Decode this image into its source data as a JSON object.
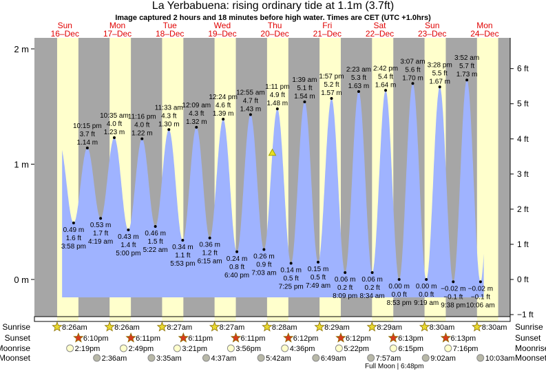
{
  "header": {
    "title": "La Yerbabuena: rising  ordinary tide at 1.1m (3.7ft)",
    "subtitle": "Image captured 2 hours and 18 minutes before high water. Times are CET (UTC +1.0hrs)"
  },
  "colors": {
    "night": "#a6a6a6",
    "day": "#ffffcc",
    "water": "#9fb3ff",
    "day_label": "#e00000",
    "sunrise": "#e8d830",
    "sunset": "#d63a1e",
    "moonrise": "#ffffcc",
    "moonset": "#b8b8a8"
  },
  "days": [
    {
      "name": "Sun",
      "date": "16–Dec"
    },
    {
      "name": "Mon",
      "date": "17–Dec"
    },
    {
      "name": "Tue",
      "date": "18–Dec"
    },
    {
      "name": "Wed",
      "date": "19–Dec"
    },
    {
      "name": "Thu",
      "date": "20–Dec"
    },
    {
      "name": "Fri",
      "date": "21–Dec"
    },
    {
      "name": "Sat",
      "date": "22–Dec"
    },
    {
      "name": "Sun",
      "date": "23–Dec"
    },
    {
      "name": "Mon",
      "date": "24–Dec"
    }
  ],
  "chart_data": {
    "type": "area",
    "title": "La Yerbabuena: rising  ordinary tide at 1.1m (3.7ft)",
    "left_axis": {
      "unit": "m",
      "ticks": [
        {
          "v": 2,
          "label": "2 m"
        },
        {
          "v": 1,
          "label": "1 m"
        },
        {
          "v": 0,
          "label": "0 m"
        }
      ]
    },
    "right_axis": {
      "unit": "ft",
      "ticks": [
        {
          "v": 6,
          "label": "6 ft"
        },
        {
          "v": 5,
          "label": "5 ft"
        },
        {
          "v": 4,
          "label": "4 ft"
        },
        {
          "v": 3,
          "label": "3 ft"
        },
        {
          "v": 2,
          "label": "2 ft"
        },
        {
          "v": 1,
          "label": "1 ft"
        },
        {
          "v": 0,
          "label": "0 ft"
        },
        {
          "v": -1,
          "label": "−1 ft"
        }
      ]
    },
    "ylim_m": [
      -0.3,
      2.1
    ],
    "current": {
      "day": 4,
      "hour": 10.88,
      "m": 1.1
    },
    "extremes": [
      {
        "d": 0,
        "h": 15.97,
        "type": "low",
        "m": 0.49,
        "m_label": "0.49 m",
        "ft": "1.6 ft",
        "time": "3:58 pm"
      },
      {
        "d": 0,
        "h": 22.25,
        "type": "high",
        "m": 1.14,
        "m_label": "1.14 m",
        "ft": "3.7 ft",
        "time": "10:15 pm"
      },
      {
        "d": 1,
        "h": 4.32,
        "type": "low",
        "m": 0.53,
        "m_label": "0.53 m",
        "ft": "1.7 ft",
        "time": "4:19 am"
      },
      {
        "d": 1,
        "h": 10.58,
        "type": "high",
        "m": 1.23,
        "m_label": "1.23 m",
        "ft": "4.0 ft",
        "time": "10:35 am"
      },
      {
        "d": 1,
        "h": 17.0,
        "type": "low",
        "m": 0.43,
        "m_label": "0.43 m",
        "ft": "1.4 ft",
        "time": "5:00 pm"
      },
      {
        "d": 1,
        "h": 23.27,
        "type": "high",
        "m": 1.22,
        "m_label": "1.22 m",
        "ft": "4.0 ft",
        "time": "11:16 pm"
      },
      {
        "d": 2,
        "h": 5.37,
        "type": "low",
        "m": 0.46,
        "m_label": "0.46 m",
        "ft": "1.5 ft",
        "time": "5:22 am"
      },
      {
        "d": 2,
        "h": 11.55,
        "type": "high",
        "m": 1.3,
        "m_label": "1.30 m",
        "ft": "4.3 ft",
        "time": "11:33 am"
      },
      {
        "d": 2,
        "h": 17.88,
        "type": "low",
        "m": 0.34,
        "m_label": "0.34 m",
        "ft": "1.1 ft",
        "time": "5:53 pm"
      },
      {
        "d": 3,
        "h": 0.15,
        "type": "high",
        "m": 1.32,
        "m_label": "1.32 m",
        "ft": "4.3 ft",
        "time": "12:09 am"
      },
      {
        "d": 3,
        "h": 6.25,
        "type": "low",
        "m": 0.36,
        "m_label": "0.36 m",
        "ft": "1.2 ft",
        "time": "6:15 am"
      },
      {
        "d": 3,
        "h": 12.4,
        "type": "high",
        "m": 1.39,
        "m_label": "1.39 m",
        "ft": "4.6 ft",
        "time": "12:24 pm"
      },
      {
        "d": 3,
        "h": 18.67,
        "type": "low",
        "m": 0.24,
        "m_label": "0.24 m",
        "ft": "0.8 ft",
        "time": "6:40 pm"
      },
      {
        "d": 4,
        "h": 0.92,
        "type": "high",
        "m": 1.43,
        "m_label": "1.43 m",
        "ft": "4.7 ft",
        "time": "12:55 am"
      },
      {
        "d": 4,
        "h": 7.05,
        "type": "low",
        "m": 0.26,
        "m_label": "0.26 m",
        "ft": "0.9 ft",
        "time": "7:03 am"
      },
      {
        "d": 4,
        "h": 13.18,
        "type": "high",
        "m": 1.48,
        "m_label": "1.48 m",
        "ft": "4.9 ft",
        "time": "1:11 pm"
      },
      {
        "d": 4,
        "h": 19.42,
        "type": "low",
        "m": 0.14,
        "m_label": "0.14 m",
        "ft": "0.5 ft",
        "time": "7:25 pm"
      },
      {
        "d": 5,
        "h": 1.65,
        "type": "high",
        "m": 1.54,
        "m_label": "1.54 m",
        "ft": "5.1 ft",
        "time": "1:39 am"
      },
      {
        "d": 5,
        "h": 7.82,
        "type": "low",
        "m": 0.15,
        "m_label": "0.15 m",
        "ft": "0.5 ft",
        "time": "7:49 am"
      },
      {
        "d": 5,
        "h": 13.95,
        "type": "high",
        "m": 1.57,
        "m_label": "1.57 m",
        "ft": "5.2 ft",
        "time": "1:57 pm"
      },
      {
        "d": 5,
        "h": 20.15,
        "type": "low",
        "m": 0.06,
        "m_label": "0.06 m",
        "ft": "0.2 ft",
        "time": "8:09 pm"
      },
      {
        "d": 6,
        "h": 2.38,
        "type": "high",
        "m": 1.63,
        "m_label": "1.63 m",
        "ft": "5.3 ft",
        "time": "2:23 am"
      },
      {
        "d": 6,
        "h": 8.57,
        "type": "low",
        "m": 0.06,
        "m_label": "0.06 m",
        "ft": "0.2 ft",
        "time": "8:34 am"
      },
      {
        "d": 6,
        "h": 14.7,
        "type": "high",
        "m": 1.64,
        "m_label": "1.64 m",
        "ft": "5.4 ft",
        "time": "2:42 pm"
      },
      {
        "d": 6,
        "h": 20.88,
        "type": "low",
        "m": 0.0,
        "m_label": "0.00 m",
        "ft": "0.0 ft",
        "time": "8:53 pm"
      },
      {
        "d": 7,
        "h": 3.12,
        "type": "high",
        "m": 1.7,
        "m_label": "1.70 m",
        "ft": "5.6 ft",
        "time": "3:07 am"
      },
      {
        "d": 7,
        "h": 9.32,
        "type": "low",
        "m": 0.0,
        "m_label": "0.00 m",
        "ft": "0.0 ft",
        "time": "9:19 am"
      },
      {
        "d": 7,
        "h": 15.47,
        "type": "high",
        "m": 1.67,
        "m_label": "1.67 m",
        "ft": "5.5 ft",
        "time": "3:28 pm"
      },
      {
        "d": 7,
        "h": 21.63,
        "type": "low",
        "m": -0.02,
        "m_label": "−0.02 m",
        "ft": "−0.1 ft",
        "time": "9:38 pm"
      },
      {
        "d": 8,
        "h": 3.87,
        "type": "high",
        "m": 1.73,
        "m_label": "1.73 m",
        "ft": "5.7 ft",
        "time": "3:52 am"
      },
      {
        "d": 8,
        "h": 10.1,
        "type": "low",
        "m": -0.02,
        "m_label": "−0.02 m",
        "ft": "−0.1 ft",
        "time": "10:06 am"
      }
    ]
  },
  "astro": {
    "labels": {
      "sunrise": "Sunrise",
      "sunset": "Sunset",
      "moonrise": "Moonrise",
      "moonset": "Moonset"
    },
    "sunrise": [
      {
        "d": 0,
        "t": "8:26am",
        "h": 8.43
      },
      {
        "d": 1,
        "t": "8:26am",
        "h": 8.43
      },
      {
        "d": 2,
        "t": "8:27am",
        "h": 8.45
      },
      {
        "d": 3,
        "t": "8:27am",
        "h": 8.45
      },
      {
        "d": 4,
        "t": "8:28am",
        "h": 8.47
      },
      {
        "d": 5,
        "t": "8:29am",
        "h": 8.48
      },
      {
        "d": 6,
        "t": "8:29am",
        "h": 8.48
      },
      {
        "d": 7,
        "t": "8:30am",
        "h": 8.5
      },
      {
        "d": 8,
        "t": "8:30am",
        "h": 8.5
      }
    ],
    "sunset": [
      {
        "d": 0,
        "t": "6:10pm",
        "h": 18.17
      },
      {
        "d": 1,
        "t": "6:11pm",
        "h": 18.18
      },
      {
        "d": 2,
        "t": "6:11pm",
        "h": 18.18
      },
      {
        "d": 3,
        "t": "6:11pm",
        "h": 18.18
      },
      {
        "d": 4,
        "t": "6:12pm",
        "h": 18.2
      },
      {
        "d": 5,
        "t": "6:12pm",
        "h": 18.2
      },
      {
        "d": 6,
        "t": "6:13pm",
        "h": 18.22
      },
      {
        "d": 7,
        "t": "6:13pm",
        "h": 18.22
      }
    ],
    "moonrise": [
      {
        "d": 0,
        "t": "2:19pm",
        "h": 14.32
      },
      {
        "d": 1,
        "t": "2:49pm",
        "h": 14.82
      },
      {
        "d": 2,
        "t": "3:21pm",
        "h": 15.35
      },
      {
        "d": 3,
        "t": "3:56pm",
        "h": 15.93
      },
      {
        "d": 4,
        "t": "4:36pm",
        "h": 16.6
      },
      {
        "d": 5,
        "t": "5:22pm",
        "h": 17.37
      },
      {
        "d": 6,
        "t": "6:15pm",
        "h": 18.25
      },
      {
        "d": 7,
        "t": "7:16pm",
        "h": 19.27
      }
    ],
    "moonset": [
      {
        "d": 1,
        "t": "2:36am",
        "h": 2.6
      },
      {
        "d": 2,
        "t": "3:35am",
        "h": 3.58
      },
      {
        "d": 3,
        "t": "4:37am",
        "h": 4.62
      },
      {
        "d": 4,
        "t": "5:42am",
        "h": 5.7
      },
      {
        "d": 5,
        "t": "6:49am",
        "h": 6.82
      },
      {
        "d": 6,
        "t": "7:57am",
        "h": 7.95
      },
      {
        "d": 7,
        "t": "9:02am",
        "h": 9.03
      },
      {
        "d": 8,
        "t": "10:03am",
        "h": 10.05
      }
    ],
    "full_moon": "Full Moon | 6:48pm"
  }
}
